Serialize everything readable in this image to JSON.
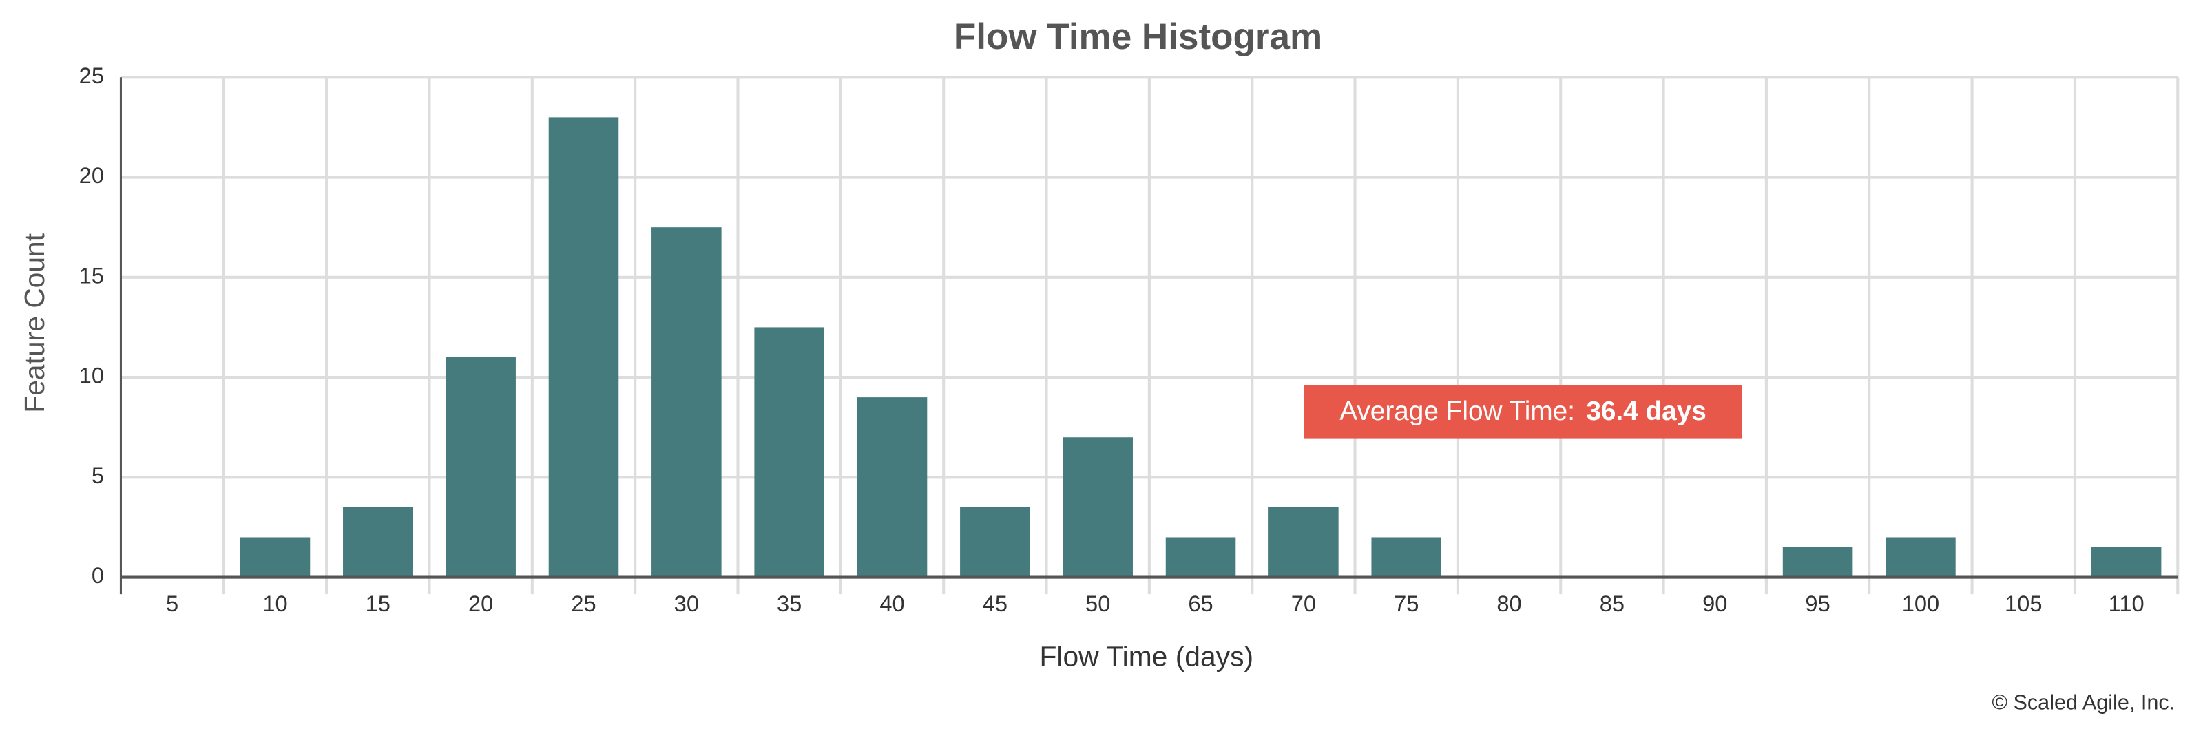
{
  "chart_data": {
    "type": "bar",
    "title": "Flow Time Histogram",
    "x_label": "Flow Time (days)",
    "y_label": "Feature Count",
    "categories": [
      "5",
      "10",
      "15",
      "20",
      "25",
      "30",
      "35",
      "40",
      "45",
      "50",
      "65",
      "70",
      "75",
      "80",
      "85",
      "90",
      "95",
      "100",
      "105",
      "110"
    ],
    "values": [
      0,
      2,
      3.5,
      11,
      23,
      17.5,
      12.5,
      9,
      3.5,
      7,
      2,
      3.5,
      2,
      0,
      0,
      0,
      1.5,
      2,
      0,
      1.5
    ],
    "color": "#457b7d",
    "ylim": [
      0,
      25
    ],
    "yticks": [
      0,
      5,
      10,
      15,
      20,
      25
    ],
    "grid": true,
    "annotation": {
      "label": "Average Flow Time:",
      "value": "36.4 days",
      "color": "#e8584a"
    },
    "footer": "© Scaled Agile, Inc."
  }
}
